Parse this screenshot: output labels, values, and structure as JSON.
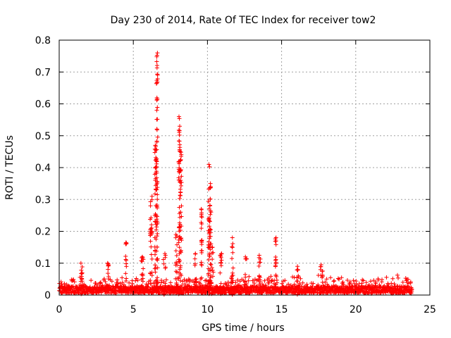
{
  "chart_data": {
    "type": "scatter",
    "title": "Day 230 of 2014, Rate Of TEC Index for receiver tow2",
    "xlabel": "GPS time / hours",
    "ylabel": "ROTI / TECUs",
    "xlim": [
      0,
      25
    ],
    "ylim": [
      0,
      0.8
    ],
    "xticks": [
      0,
      5,
      10,
      15,
      20,
      25
    ],
    "yticks": [
      0,
      0.1,
      0.2,
      0.3,
      0.4,
      0.5,
      0.6,
      0.7,
      0.8
    ],
    "xtick_labels": [
      "0",
      "5",
      "10",
      "15",
      "20",
      "25"
    ],
    "ytick_labels": [
      "0",
      "0.1",
      "0.2",
      "0.3",
      "0.4",
      "0.5",
      "0.6",
      "0.7",
      "0.8"
    ],
    "grid": true,
    "marker": "+",
    "color": "#ff0000",
    "peaks": [
      {
        "x": 6.6,
        "y": 0.76,
        "w": 0.08
      },
      {
        "x": 6.5,
        "y": 0.47,
        "w": 0.1
      },
      {
        "x": 6.2,
        "y": 0.31,
        "w": 0.15
      },
      {
        "x": 8.1,
        "y": 0.56,
        "w": 0.08
      },
      {
        "x": 8.2,
        "y": 0.45,
        "w": 0.1
      },
      {
        "x": 7.9,
        "y": 0.19,
        "w": 0.1
      },
      {
        "x": 10.1,
        "y": 0.41,
        "w": 0.08
      },
      {
        "x": 10.2,
        "y": 0.35,
        "w": 0.08
      },
      {
        "x": 9.6,
        "y": 0.27,
        "w": 0.05
      },
      {
        "x": 10.3,
        "y": 0.15,
        "w": 0.2
      },
      {
        "x": 11.7,
        "y": 0.18,
        "w": 0.12
      },
      {
        "x": 14.6,
        "y": 0.18,
        "w": 0.06
      },
      {
        "x": 13.5,
        "y": 0.125,
        "w": 0.15
      },
      {
        "x": 4.5,
        "y": 0.165,
        "w": 0.08
      },
      {
        "x": 3.3,
        "y": 0.1,
        "w": 0.12
      },
      {
        "x": 1.5,
        "y": 0.1,
        "w": 0.12
      },
      {
        "x": 5.6,
        "y": 0.12,
        "w": 0.15
      },
      {
        "x": 9.2,
        "y": 0.13,
        "w": 0.12
      },
      {
        "x": 10.9,
        "y": 0.13,
        "w": 0.12
      },
      {
        "x": 16.1,
        "y": 0.09,
        "w": 0.15
      },
      {
        "x": 17.7,
        "y": 0.095,
        "w": 0.15
      },
      {
        "x": 12.6,
        "y": 0.12,
        "w": 0.12
      },
      {
        "x": 7.1,
        "y": 0.13,
        "w": 0.15
      }
    ],
    "background": {
      "x_start": 0,
      "x_end": 23.8,
      "typical": 0.025,
      "max": 0.06
    }
  }
}
